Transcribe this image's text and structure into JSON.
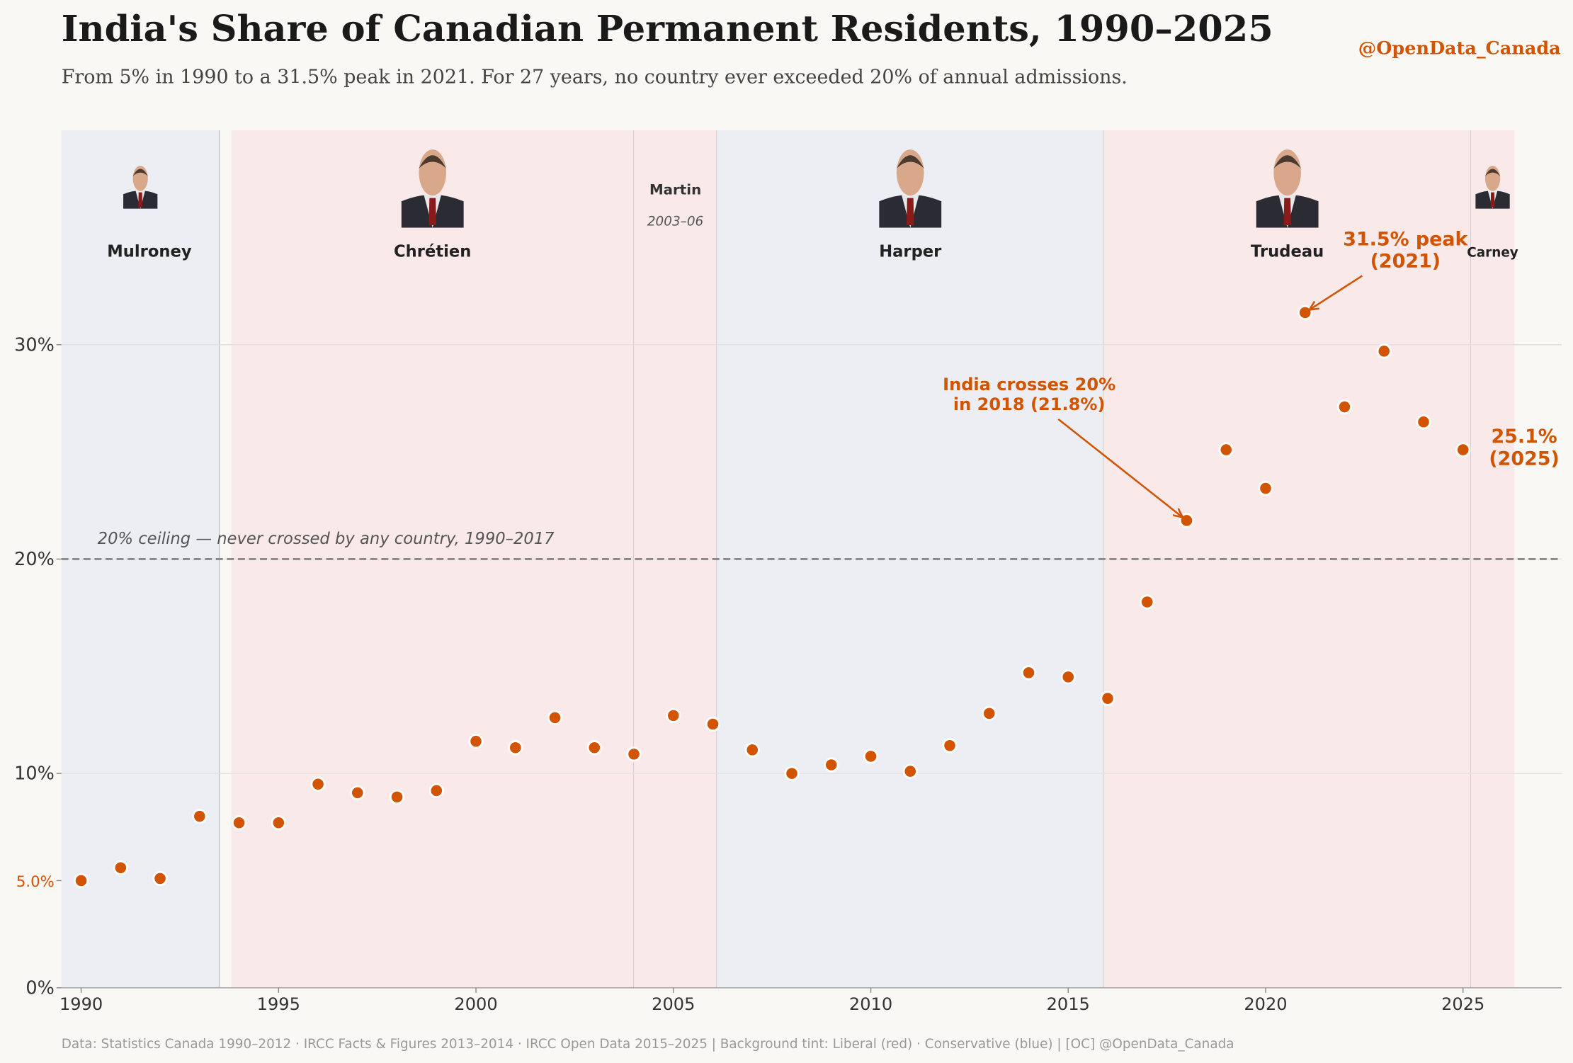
{
  "chart_data": {
    "type": "line",
    "title": "India's Share of Canadian Permanent Residents, 1990–2025",
    "subtitle": "From 5% in 1990 to a 31.5% peak in 2021. For 27 years, no country ever exceeded 20% of annual admissions.",
    "credit": "@OpenData_Canada",
    "source": "Data: Statistics Canada 1990–2012 · IRCC Facts & Figures 2013–2014 · IRCC Open Data 2015–2025  | Background tint: Liberal (red) · Conservative (blue)  |  [OC] @OpenData_Canada",
    "x": [
      1990,
      1991,
      1992,
      1993,
      1994,
      1995,
      1996,
      1997,
      1998,
      1999,
      2000,
      2001,
      2002,
      2003,
      2004,
      2005,
      2006,
      2007,
      2008,
      2009,
      2010,
      2011,
      2012,
      2013,
      2014,
      2015,
      2016,
      2017,
      2018,
      2019,
      2020,
      2021,
      2022,
      2023,
      2024,
      2025
    ],
    "values": [
      5.0,
      5.6,
      5.1,
      8.0,
      7.7,
      7.7,
      9.5,
      9.1,
      8.9,
      9.2,
      11.5,
      11.2,
      12.6,
      11.2,
      10.9,
      12.7,
      12.3,
      11.1,
      10.0,
      10.4,
      10.8,
      10.1,
      11.3,
      12.8,
      14.7,
      14.5,
      13.5,
      18.0,
      21.8,
      25.1,
      23.3,
      31.5,
      27.1,
      29.7,
      26.4,
      25.1
    ],
    "color": "#d35400",
    "xlim": [
      1989.5,
      2027.5
    ],
    "xticks": [
      1990,
      1995,
      2000,
      2005,
      2010,
      2015,
      2020,
      2025
    ],
    "ylim": [
      0,
      40
    ],
    "yticks": [
      {
        "value": 0,
        "label": "0%"
      },
      {
        "value": 5,
        "label": "5.0%",
        "color": "#d35400"
      },
      {
        "value": 10,
        "label": "10%"
      },
      {
        "value": 20,
        "label": "20%"
      },
      {
        "value": 30,
        "label": "30%"
      }
    ],
    "grid": true,
    "reference_line": {
      "value": 20,
      "label": "20% ceiling — never crossed by any country, 1990–2017"
    },
    "party_colors": {
      "Liberal": "#f9e9e9",
      "Conservative": "#eceef3"
    },
    "eras": [
      {
        "name": "Mulroney",
        "party": "Conservative",
        "start": 1989.5,
        "end": 1993.5,
        "portrait": true
      },
      {
        "name": "Chrétien",
        "party": "Liberal",
        "start": 1993.8,
        "end": 2004.0,
        "portrait": true
      },
      {
        "name": "Martin",
        "years": "2003–06",
        "party": "Liberal",
        "start": 2004.0,
        "end": 2006.1,
        "portrait": false
      },
      {
        "name": "Harper",
        "party": "Conservative",
        "start": 2006.1,
        "end": 2015.9,
        "portrait": true
      },
      {
        "name": "Trudeau",
        "party": "Liberal",
        "start": 2015.9,
        "end": 2025.2,
        "portrait": true
      },
      {
        "name": "Carney",
        "party": "Liberal",
        "start": 2025.2,
        "end": 2026.3,
        "portrait": true
      }
    ],
    "annotations": [
      {
        "text": [
          "India crosses 20%",
          "in 2018 (21.8%)"
        ],
        "x": 2018,
        "arrow": true
      },
      {
        "text": [
          "31.5% peak",
          "(2021)"
        ],
        "x": 2021,
        "arrow": true
      },
      {
        "text": [
          "25.1%",
          "(2025)"
        ],
        "x": 2025,
        "arrow": false
      }
    ]
  }
}
